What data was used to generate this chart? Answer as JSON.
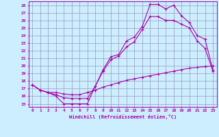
{
  "xlabel": "Windchill (Refroidissement éolien,°C)",
  "bg_color": "#cceeff",
  "grid_color": "#9999bb",
  "line_color": "#aa00aa",
  "xlim": [
    -0.5,
    23.5
  ],
  "ylim": [
    14.6,
    28.5
  ],
  "xticks": [
    0,
    1,
    2,
    3,
    4,
    5,
    6,
    7,
    8,
    9,
    10,
    11,
    12,
    13,
    14,
    15,
    16,
    17,
    18,
    19,
    20,
    21,
    22,
    23
  ],
  "yticks": [
    15,
    16,
    17,
    18,
    19,
    20,
    21,
    22,
    23,
    24,
    25,
    26,
    27,
    28
  ],
  "line1_x": [
    0,
    1,
    2,
    3,
    4,
    5,
    6,
    7,
    8,
    9,
    10,
    11,
    12,
    13,
    14,
    15,
    16,
    17,
    18,
    19,
    20,
    21,
    22,
    23
  ],
  "line1_y": [
    17.5,
    16.8,
    16.5,
    16.0,
    15.0,
    15.0,
    15.0,
    15.0,
    17.3,
    19.5,
    21.2,
    21.5,
    23.3,
    23.8,
    25.2,
    28.1,
    28.1,
    27.5,
    28.0,
    26.6,
    25.7,
    24.0,
    23.5,
    19.5
  ],
  "line2_x": [
    0,
    1,
    2,
    3,
    4,
    5,
    6,
    7,
    8,
    9,
    10,
    11,
    12,
    13,
    14,
    15,
    16,
    17,
    18,
    19,
    20,
    21,
    22,
    23
  ],
  "line2_y": [
    17.5,
    16.8,
    16.5,
    16.2,
    15.8,
    15.7,
    15.7,
    15.7,
    17.3,
    19.3,
    20.8,
    21.3,
    22.5,
    23.2,
    24.8,
    26.5,
    26.5,
    26.0,
    26.0,
    25.5,
    25.0,
    23.3,
    22.3,
    19.3
  ],
  "line3_x": [
    0,
    1,
    2,
    3,
    4,
    5,
    6,
    7,
    8,
    9,
    10,
    11,
    12,
    13,
    14,
    15,
    16,
    17,
    18,
    19,
    20,
    21,
    22,
    23
  ],
  "line3_y": [
    17.5,
    16.8,
    16.5,
    16.5,
    16.3,
    16.2,
    16.2,
    16.5,
    16.8,
    17.2,
    17.5,
    17.8,
    18.1,
    18.3,
    18.5,
    18.7,
    18.9,
    19.1,
    19.3,
    19.5,
    19.7,
    19.8,
    19.9,
    20.0
  ]
}
